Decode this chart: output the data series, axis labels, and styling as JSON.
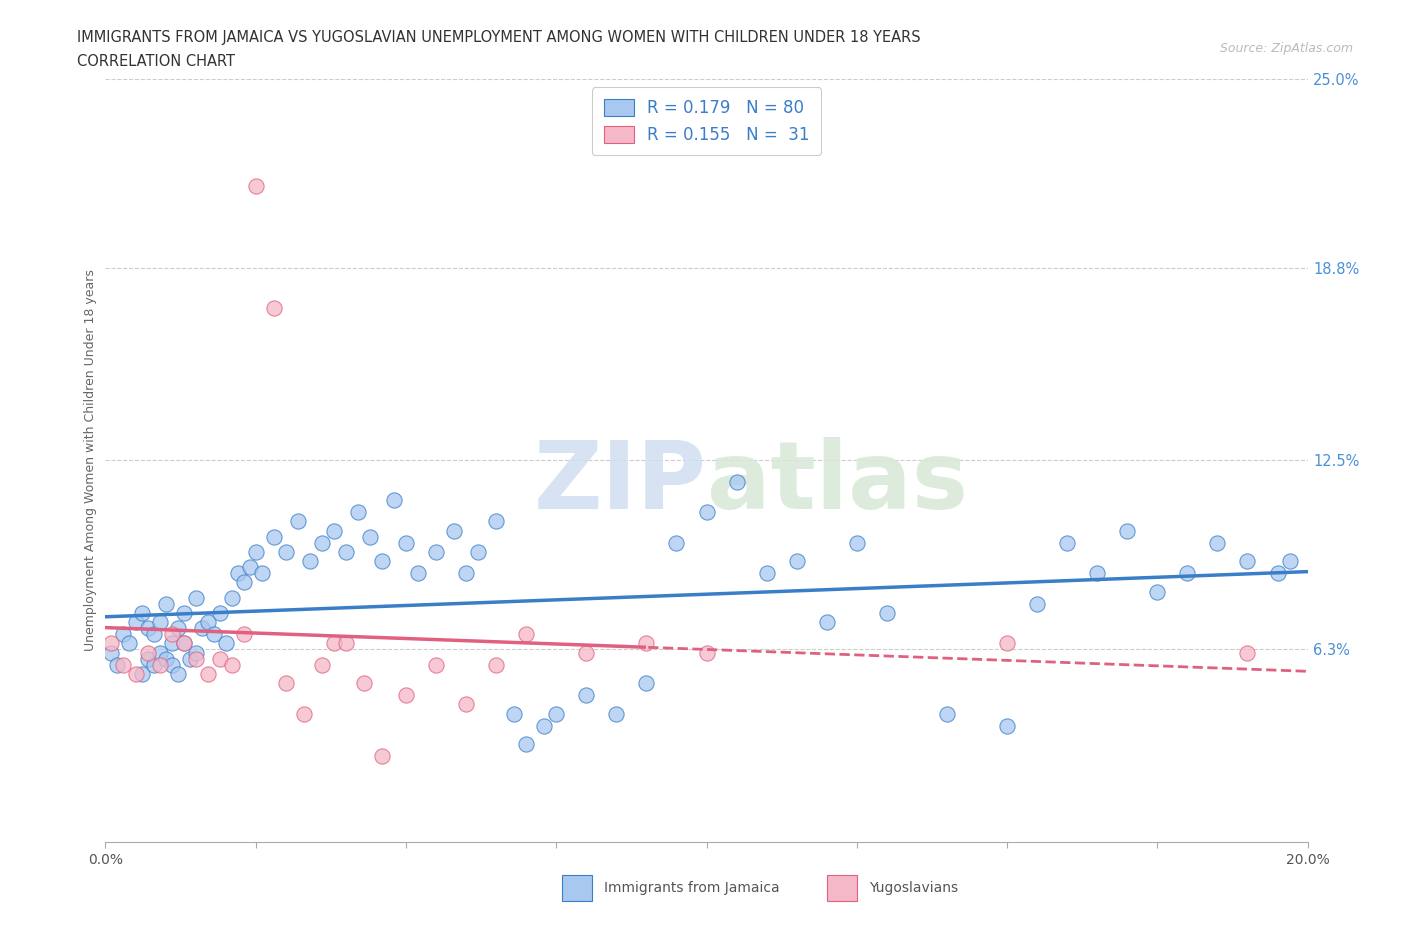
{
  "title_line1": "IMMIGRANTS FROM JAMAICA VS YUGOSLAVIAN UNEMPLOYMENT AMONG WOMEN WITH CHILDREN UNDER 18 YEARS",
  "title_line2": "CORRELATION CHART",
  "source_text": "Source: ZipAtlas.com",
  "ylabel": "Unemployment Among Women with Children Under 18 years",
  "xlim": [
    0.0,
    0.2
  ],
  "ylim": [
    0.0,
    0.25
  ],
  "xticks": [
    0.0,
    0.025,
    0.05,
    0.075,
    0.1,
    0.125,
    0.15,
    0.175,
    0.2
  ],
  "ytick_labels_right": [
    "6.3%",
    "12.5%",
    "18.8%",
    "25.0%"
  ],
  "ytick_vals_right": [
    0.063,
    0.125,
    0.188,
    0.25
  ],
  "legend_r1": "R = 0.179",
  "legend_n1": "N = 80",
  "legend_r2": "R = 0.155",
  "legend_n2": "N =  31",
  "color_jamaica": "#a8c8f0",
  "color_yugoslavia": "#f5b8c8",
  "color_jamaica_line": "#3a7ec8",
  "color_yugoslavia_line": "#e06080",
  "jamaica_x": [
    0.001,
    0.002,
    0.003,
    0.004,
    0.005,
    0.006,
    0.006,
    0.007,
    0.007,
    0.008,
    0.008,
    0.009,
    0.009,
    0.01,
    0.01,
    0.011,
    0.011,
    0.012,
    0.012,
    0.013,
    0.013,
    0.014,
    0.015,
    0.015,
    0.016,
    0.017,
    0.018,
    0.019,
    0.02,
    0.021,
    0.022,
    0.023,
    0.024,
    0.025,
    0.026,
    0.028,
    0.03,
    0.032,
    0.034,
    0.036,
    0.038,
    0.04,
    0.042,
    0.044,
    0.046,
    0.048,
    0.05,
    0.052,
    0.055,
    0.058,
    0.06,
    0.062,
    0.065,
    0.068,
    0.07,
    0.073,
    0.075,
    0.08,
    0.085,
    0.09,
    0.095,
    0.1,
    0.105,
    0.11,
    0.115,
    0.12,
    0.125,
    0.13,
    0.14,
    0.15,
    0.155,
    0.16,
    0.165,
    0.17,
    0.175,
    0.18,
    0.185,
    0.19,
    0.195,
    0.197
  ],
  "jamaica_y": [
    0.062,
    0.058,
    0.068,
    0.065,
    0.072,
    0.055,
    0.075,
    0.06,
    0.07,
    0.058,
    0.068,
    0.062,
    0.072,
    0.06,
    0.078,
    0.058,
    0.065,
    0.055,
    0.07,
    0.065,
    0.075,
    0.06,
    0.08,
    0.062,
    0.07,
    0.072,
    0.068,
    0.075,
    0.065,
    0.08,
    0.088,
    0.085,
    0.09,
    0.095,
    0.088,
    0.1,
    0.095,
    0.105,
    0.092,
    0.098,
    0.102,
    0.095,
    0.108,
    0.1,
    0.092,
    0.112,
    0.098,
    0.088,
    0.095,
    0.102,
    0.088,
    0.095,
    0.105,
    0.042,
    0.032,
    0.038,
    0.042,
    0.048,
    0.042,
    0.052,
    0.098,
    0.108,
    0.118,
    0.088,
    0.092,
    0.072,
    0.098,
    0.075,
    0.042,
    0.038,
    0.078,
    0.098,
    0.088,
    0.102,
    0.082,
    0.088,
    0.098,
    0.092,
    0.088,
    0.092
  ],
  "yugoslavia_x": [
    0.001,
    0.003,
    0.005,
    0.007,
    0.009,
    0.011,
    0.013,
    0.015,
    0.017,
    0.019,
    0.021,
    0.023,
    0.025,
    0.028,
    0.03,
    0.033,
    0.036,
    0.038,
    0.04,
    0.043,
    0.046,
    0.05,
    0.055,
    0.06,
    0.065,
    0.07,
    0.08,
    0.09,
    0.1,
    0.15,
    0.19
  ],
  "yugoslavia_y": [
    0.065,
    0.058,
    0.055,
    0.062,
    0.058,
    0.068,
    0.065,
    0.06,
    0.055,
    0.06,
    0.058,
    0.068,
    0.215,
    0.175,
    0.052,
    0.042,
    0.058,
    0.065,
    0.065,
    0.052,
    0.028,
    0.048,
    0.058,
    0.045,
    0.058,
    0.068,
    0.062,
    0.065,
    0.062,
    0.065,
    0.062
  ]
}
